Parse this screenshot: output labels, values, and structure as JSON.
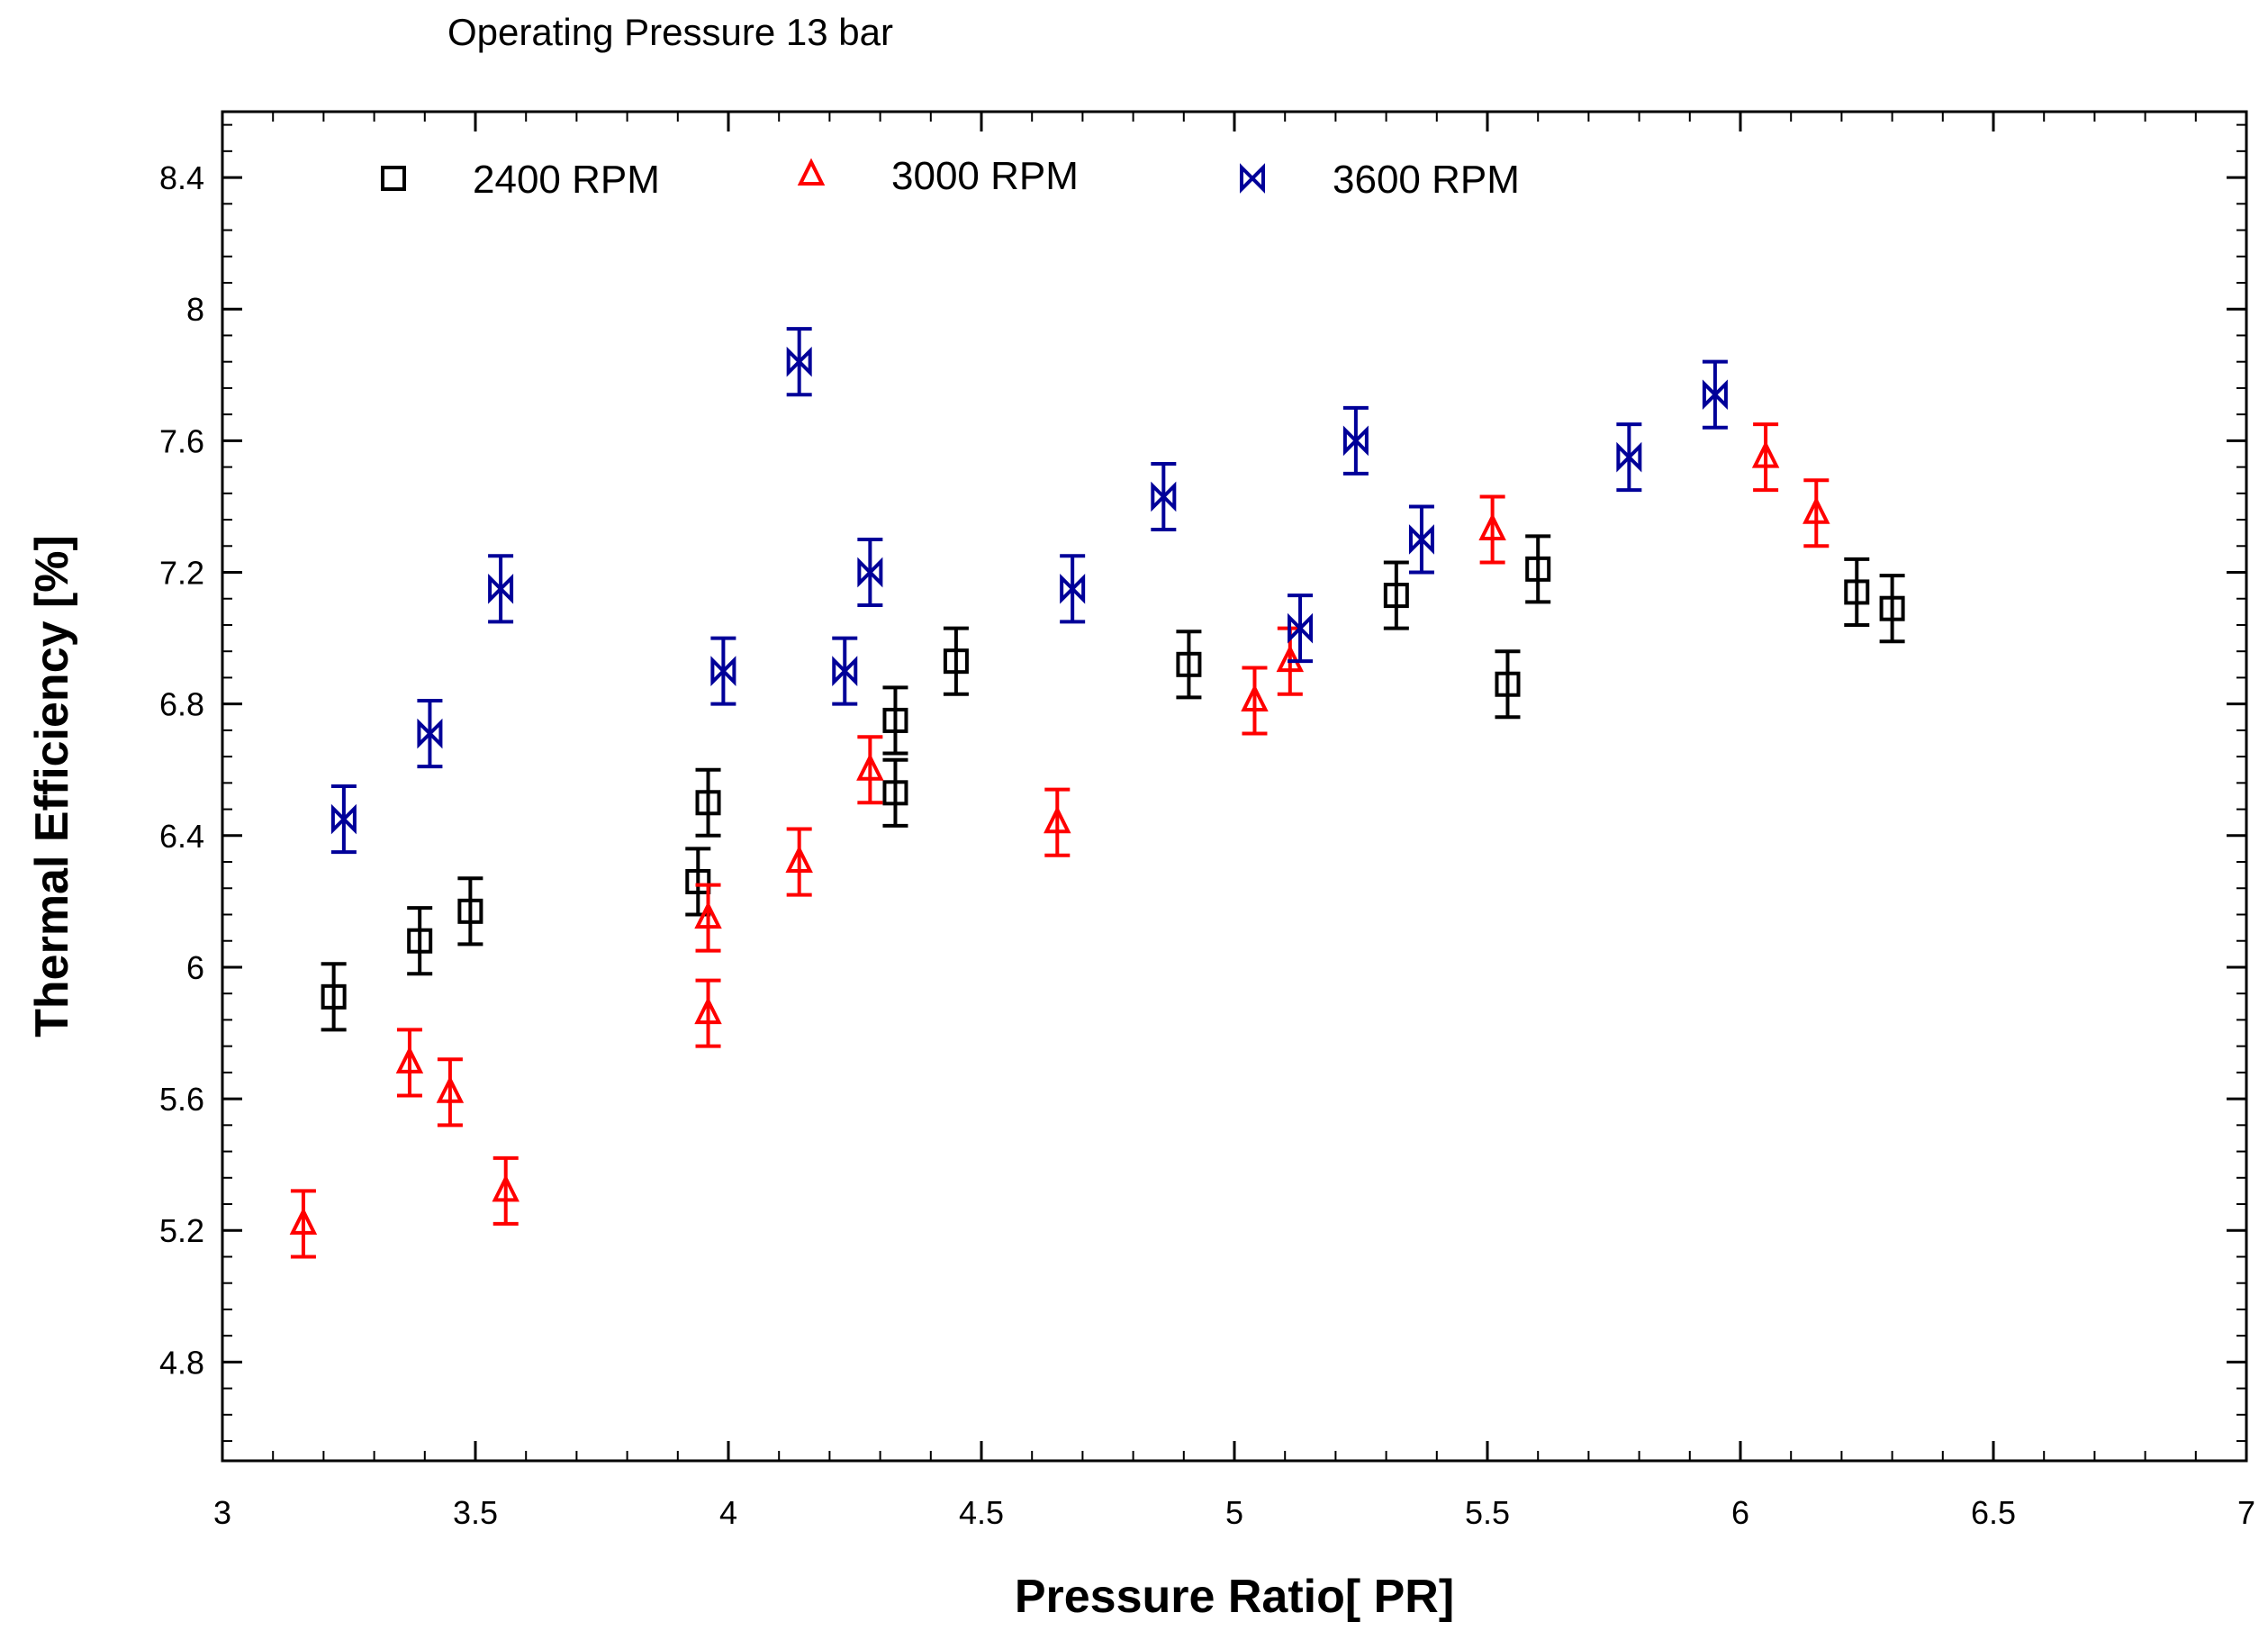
{
  "chart_data": {
    "type": "scatter",
    "title": "Operating Pressure 13 bar",
    "xlabel": "Pressure Ratio[ PR]",
    "ylabel": "Thermal Efficiency [%]",
    "xlim": [
      3,
      7
    ],
    "ylim": [
      4.5,
      8.6
    ],
    "xticks": [
      3,
      3.5,
      4,
      4.5,
      5,
      5.5,
      6,
      6.5,
      7
    ],
    "xtick_labels": [
      "3",
      "3.5",
      "4",
      "4.5",
      "5",
      "5.5",
      "6",
      "6.5",
      "7"
    ],
    "yticks": [
      4.8,
      5.2,
      5.6,
      6,
      6.4,
      6.8,
      7.2,
      7.6,
      8,
      8.4
    ],
    "ytick_labels": [
      "4.8",
      "5.2",
      "5.6",
      "6",
      "6.4",
      "6.8",
      "7.2",
      "7.6",
      "8",
      "8.4"
    ],
    "grid": false,
    "legend_position": "top",
    "error": 0.1,
    "series": [
      {
        "name": "2400 RPM",
        "marker": "square",
        "color": "#000000",
        "x": [
          3.22,
          3.39,
          3.49,
          3.94,
          3.96,
          4.33,
          4.33,
          4.45,
          4.91,
          5.32,
          5.54,
          5.6,
          6.23,
          6.3
        ],
        "y": [
          5.91,
          6.08,
          6.17,
          6.26,
          6.5,
          6.75,
          6.53,
          6.93,
          6.92,
          7.13,
          6.86,
          7.21,
          7.14,
          7.09
        ]
      },
      {
        "name": "3000 RPM",
        "marker": "triangle",
        "color": "#ff0000",
        "x": [
          3.16,
          3.37,
          3.45,
          3.56,
          3.96,
          3.96,
          4.14,
          4.28,
          4.65,
          5.04,
          5.11,
          5.51,
          6.05,
          6.15
        ],
        "y": [
          5.22,
          5.71,
          5.62,
          5.32,
          5.86,
          6.15,
          6.32,
          6.6,
          6.44,
          6.81,
          6.93,
          7.33,
          7.55,
          7.38
        ]
      },
      {
        "name": "3600 RPM",
        "marker": "hourglass",
        "color": "#000099",
        "x": [
          3.24,
          3.41,
          3.55,
          3.99,
          4.14,
          4.23,
          4.28,
          4.68,
          4.86,
          5.13,
          5.24,
          5.37,
          5.78,
          5.95
        ],
        "y": [
          6.45,
          6.71,
          7.15,
          6.9,
          7.84,
          6.9,
          7.2,
          7.15,
          7.43,
          7.03,
          7.6,
          7.3,
          7.55,
          7.74
        ]
      }
    ]
  }
}
